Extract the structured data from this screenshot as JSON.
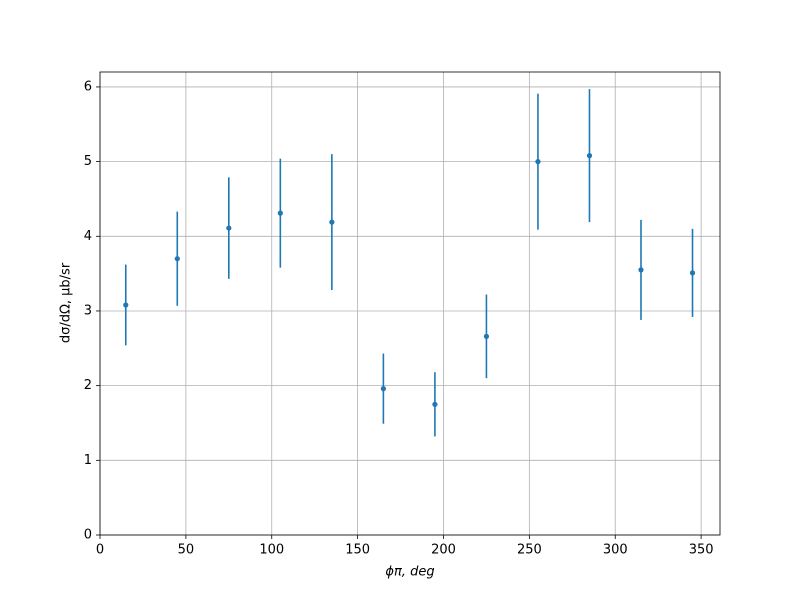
{
  "chart_data": {
    "type": "errorbar",
    "xlabel": "ϕπ, deg",
    "ylabel": "dσ/dΩ, μb/sr",
    "x": [
      15,
      45,
      75,
      105,
      135,
      165,
      195,
      225,
      255,
      285,
      315,
      345
    ],
    "values": [
      3.08,
      3.7,
      4.11,
      4.31,
      4.19,
      1.96,
      1.75,
      2.66,
      5.0,
      5.08,
      3.55,
      3.51
    ],
    "errors": [
      0.54,
      0.63,
      0.68,
      0.73,
      0.91,
      0.47,
      0.43,
      0.56,
      0.91,
      0.89,
      0.67,
      0.59
    ],
    "color": "#1f77b4",
    "xlim": [
      0,
      361
    ],
    "xticks": [
      0,
      50,
      100,
      150,
      200,
      250,
      300,
      350
    ],
    "ylim": [
      0,
      6.2
    ],
    "yticks": [
      0,
      1,
      2,
      3,
      4,
      5,
      6
    ],
    "grid": true
  }
}
